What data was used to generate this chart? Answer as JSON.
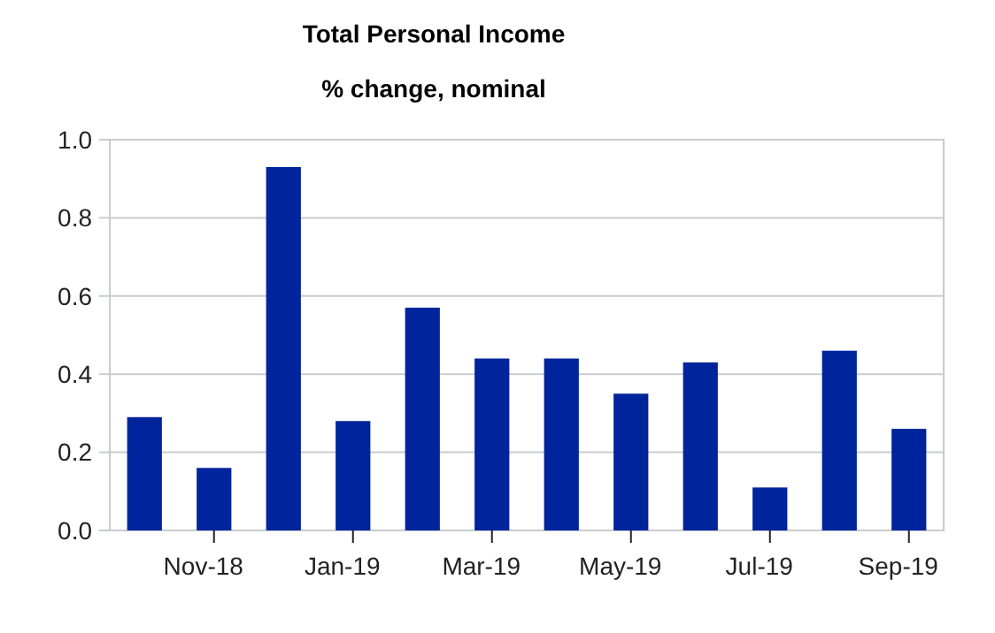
{
  "chart_data": {
    "type": "bar",
    "title": "Total Personal Income",
    "subtitle": "% change, nominal",
    "categories": [
      null,
      "Nov-18",
      null,
      "Jan-19",
      null,
      "Mar-19",
      null,
      "May-19",
      null,
      "Jul-19",
      null,
      "Sep-19"
    ],
    "values": [
      0.29,
      0.16,
      0.93,
      0.28,
      0.57,
      0.44,
      0.44,
      0.35,
      0.43,
      0.11,
      0.46,
      0.26
    ],
    "color": "#00249c",
    "ylim": [
      0,
      1
    ],
    "yticks": [
      {
        "value": 0,
        "label": "0.0"
      },
      {
        "value": 0.2,
        "label": "0.2"
      },
      {
        "value": 0.4,
        "label": "0.4"
      },
      {
        "value": 0.6,
        "label": "0.6"
      },
      {
        "value": 0.8,
        "label": "0.8"
      },
      {
        "value": 1,
        "label": "1.0"
      }
    ],
    "grid": "y"
  }
}
